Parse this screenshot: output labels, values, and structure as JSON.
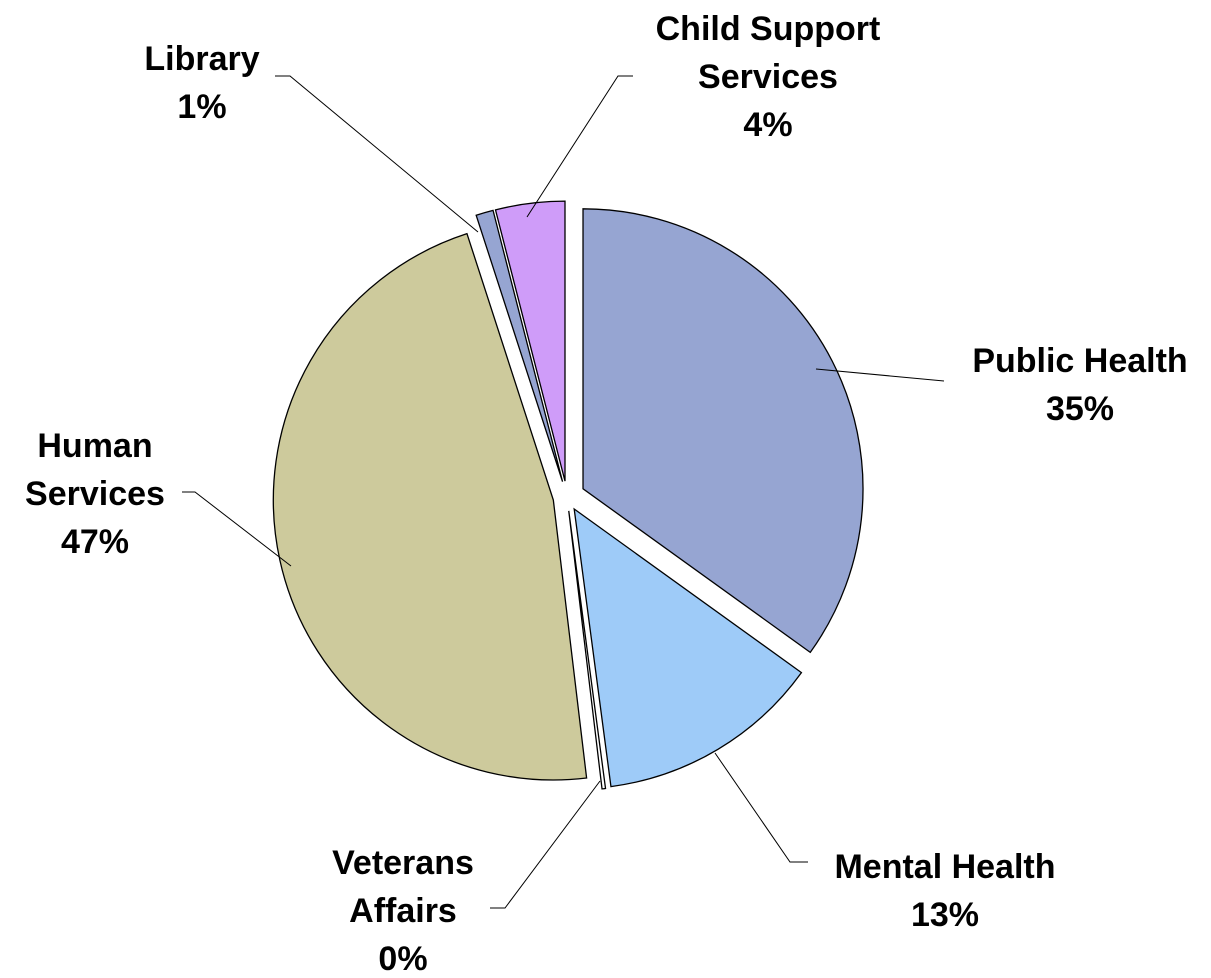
{
  "chart_data": {
    "type": "pie",
    "start_angle_deg": 0,
    "direction": "clockwise",
    "slices": [
      {
        "name": "Public Health",
        "value": 35,
        "label_lines": [
          "Public Health",
          "35%"
        ],
        "color": "#96A5D2"
      },
      {
        "name": "Mental Health",
        "value": 13,
        "label_lines": [
          "Mental Health",
          "13%"
        ],
        "color": "#9ECBF8"
      },
      {
        "name": "Veterans Affairs",
        "value": 0.2,
        "label_lines": [
          "Veterans",
          "Affairs",
          "0%"
        ],
        "color": "#FFFFFF"
      },
      {
        "name": "Human Services",
        "value": 47,
        "label_lines": [
          "Human",
          "Services",
          "47%"
        ],
        "color": "#CDCA9C"
      },
      {
        "name": "Library",
        "value": 1,
        "label_lines": [
          "Library",
          "1%"
        ],
        "color": "#96A5D2"
      },
      {
        "name": "Child Support Services",
        "value": 4,
        "label_lines": [
          "Child Support",
          "Services",
          "4%"
        ],
        "color": "#CF9CF9"
      }
    ]
  }
}
